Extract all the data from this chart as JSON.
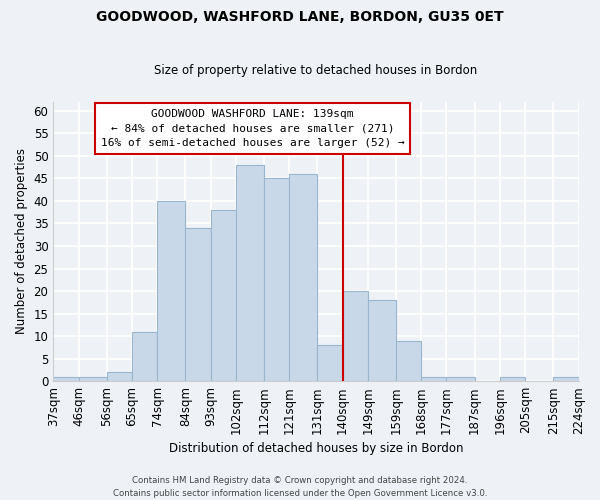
{
  "title": "GOODWOOD, WASHFORD LANE, BORDON, GU35 0ET",
  "subtitle": "Size of property relative to detached houses in Bordon",
  "xlabel": "Distribution of detached houses by size in Bordon",
  "ylabel": "Number of detached properties",
  "footnote1": "Contains HM Land Registry data © Crown copyright and database right 2024.",
  "footnote2": "Contains public sector information licensed under the Open Government Licence v3.0.",
  "bar_color": "#c8d8e8",
  "bar_edge_color": "#9ab5ce",
  "bins": [
    37,
    46,
    56,
    65,
    74,
    84,
    93,
    102,
    112,
    121,
    131,
    140,
    149,
    159,
    168,
    177,
    187,
    196,
    205,
    215,
    224
  ],
  "counts": [
    1,
    1,
    2,
    11,
    40,
    34,
    38,
    48,
    45,
    46,
    8,
    20,
    18,
    9,
    1,
    1,
    0,
    1,
    0,
    1
  ],
  "bin_labels": [
    "37sqm",
    "46sqm",
    "56sqm",
    "65sqm",
    "74sqm",
    "84sqm",
    "93sqm",
    "102sqm",
    "112sqm",
    "121sqm",
    "131sqm",
    "140sqm",
    "149sqm",
    "159sqm",
    "168sqm",
    "177sqm",
    "187sqm",
    "196sqm",
    "205sqm",
    "215sqm",
    "224sqm"
  ],
  "vline_x": 140,
  "vline_color": "#cc0000",
  "annotation_title": "GOODWOOD WASHFORD LANE: 139sqm",
  "annotation_line1": "← 84% of detached houses are smaller (271)",
  "annotation_line2": "16% of semi-detached houses are larger (52) →",
  "annotation_box_color": "#ffffff",
  "annotation_border_color": "#cc0000",
  "ylim": [
    0,
    62
  ],
  "xlim": [
    37,
    224
  ],
  "background_color": "#eef2f7",
  "grid_color": "#ffffff",
  "yticks": [
    0,
    5,
    10,
    15,
    20,
    25,
    30,
    35,
    40,
    45,
    50,
    55,
    60
  ]
}
